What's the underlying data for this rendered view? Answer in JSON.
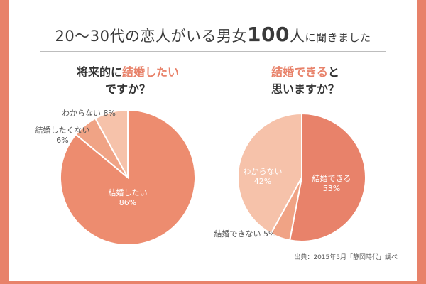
{
  "header": {
    "part1": "20〜30代の恋人がいる男女",
    "num": "100",
    "part2": "人",
    "part3": "に聞きました"
  },
  "charts": {
    "left": {
      "title_accent_pre": "将来的に",
      "title_accent": "結婚したい",
      "title_line2": "ですか？"
    },
    "right": {
      "title_accent": "結婚できる",
      "title_line1_rest": "と",
      "title_line2": "思いますか？"
    }
  },
  "source": "出典：2015年5月「静岡時代」調べ",
  "colors": {
    "frame": "#e8826a",
    "slice_main": "#ed8c6f",
    "slice_mid": "#f0a385",
    "slice_light": "#f6c2aa",
    "slice_dark": "#e8826a",
    "text_accent": "#e8826a"
  },
  "chart_data": [
    {
      "type": "pie",
      "slices": [
        {
          "label": "結婚したい",
          "value": 86,
          "display": "86%"
        },
        {
          "label": "結婚したくない",
          "value": 6,
          "display": "6%"
        },
        {
          "label": "わからない",
          "value": 8,
          "display": "8%"
        }
      ]
    },
    {
      "type": "pie",
      "slices": [
        {
          "label": "結婚できる",
          "value": 53,
          "display": "53%"
        },
        {
          "label": "結婚できない",
          "value": 5,
          "display": "5%"
        },
        {
          "label": "わからない",
          "value": 42,
          "display": "42%"
        }
      ]
    }
  ]
}
